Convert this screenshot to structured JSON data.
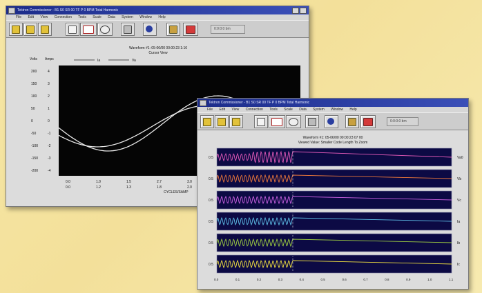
{
  "left_window": {
    "title": "Tektron Commissioner - B1 S0 SR 00 TF P 0 BPM Total Harmonic",
    "menu": [
      "File",
      "Edit",
      "View",
      "Connection",
      "Tools",
      "Scale",
      "Data",
      "System",
      "Window",
      "Help"
    ],
    "status_text": "0:0:0:0 bm",
    "plot_title_line1": "Waveform #1: 05-06/00 00:00:23 1:16",
    "plot_title_line2": "Cursor View",
    "y_axis_label": "Volts",
    "y_axis_label2": "Amps",
    "legend_line1": "Ia",
    "legend_line2": "Va",
    "y_ticks_left": [
      "200",
      "150",
      "100",
      "50",
      "0",
      "-50",
      "-100",
      "-150",
      "-200"
    ],
    "y_ticks_right": [
      "4",
      "3",
      "2",
      "1",
      "0",
      "-1",
      "-2",
      "-3",
      "-4"
    ],
    "x_ticks_top": [
      "0.0",
      "1.0",
      "1.5",
      "2.7",
      "3.0"
    ],
    "x_ticks_bottom": [
      "0.0",
      "1.2",
      "1.3",
      "1.8",
      "2.0"
    ],
    "x_axis_label": "CYCLES/SAMP"
  },
  "right_window": {
    "title": "Tektron Commissioner - B1 S0 SR 00 TF P 0 BPM Total Harmonic",
    "menu": [
      "File",
      "Edit",
      "View",
      "Connection",
      "Tools",
      "Scale",
      "Data",
      "System",
      "Window",
      "Help"
    ],
    "status_text": "0:0:0:0 bm",
    "plot_title_line1": "Waveform #1: 05-06/00 00:00:23 07 00",
    "plot_title_line2": "Viewed Value: Smaller Code Length To Zoom",
    "channels": [
      {
        "left_label": "0.5",
        "right_label": "Va0",
        "color": "#e45ab8"
      },
      {
        "left_label": "0.5",
        "right_label": "Vb",
        "color": "#f07a3a"
      },
      {
        "left_label": "0.5",
        "right_label": "Vc",
        "color": "#c860e0"
      },
      {
        "left_label": "0.5",
        "right_label": "Ia",
        "color": "#5fc0e8"
      },
      {
        "left_label": "0.5",
        "right_label": "Ib",
        "color": "#a0d040"
      },
      {
        "left_label": "0.5",
        "right_label": "Ic",
        "color": "#f0e040"
      }
    ],
    "x_ticks": [
      "0.0",
      "0.1",
      "0.2",
      "0.3",
      "0.4",
      "0.5",
      "0.6",
      "0.7",
      "0.8",
      "0.9",
      "1.0",
      "1.1"
    ],
    "x_axis_label": "CYCLES"
  },
  "icons": {
    "toolbar_group1": [
      "open-folder-icon",
      "save-folder-icon",
      "print-folder-icon"
    ],
    "toolbar_group2": [
      "document-icon",
      "waveform-icon",
      "ellipse-icon"
    ],
    "toolbar_group3": [
      "grid-icon",
      "info-icon"
    ],
    "toolbar_group4": [
      "book-icon",
      "printer-icon"
    ]
  },
  "colors": {
    "plot_background": "#050505",
    "trace_color": "#e8e8e8",
    "titlebar": "#1c2c8a",
    "page_background": "#f4e4a0"
  }
}
